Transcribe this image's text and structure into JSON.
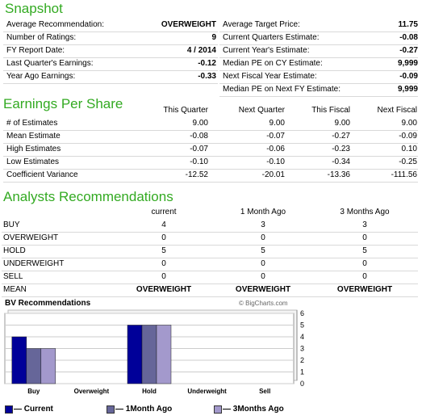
{
  "snapshot": {
    "title": "Snapshot",
    "left": [
      {
        "label": "Average Recommendation:",
        "value": "OVERWEIGHT"
      },
      {
        "label": "Number of Ratings:",
        "value": "9"
      },
      {
        "label": "FY Report Date:",
        "value": "4 / 2014"
      },
      {
        "label": "Last Quarter's Earnings:",
        "value": "-0.12"
      },
      {
        "label": "Year Ago Earnings:",
        "value": "-0.33"
      }
    ],
    "right": [
      {
        "label": "Average Target Price:",
        "value": "11.75"
      },
      {
        "label": "Current Quarters Estimate:",
        "value": "-0.08"
      },
      {
        "label": "Current Year's Estimate:",
        "value": "-0.27"
      },
      {
        "label": "Median PE on CY Estimate:",
        "value": "9,999"
      },
      {
        "label": "Next Fiscal Year Estimate:",
        "value": "-0.09"
      },
      {
        "label": "Median PE on Next FY Estimate:",
        "value": "9,999"
      }
    ]
  },
  "eps": {
    "title": "Earnings Per Share",
    "headers": [
      "This Quarter",
      "Next Quarter",
      "This Fiscal",
      "Next Fiscal"
    ],
    "rows": [
      {
        "label": "# of Estimates",
        "values": [
          "9.00",
          "9.00",
          "9.00",
          "9.00"
        ]
      },
      {
        "label": "Mean Estimate",
        "values": [
          "-0.08",
          "-0.07",
          "-0.27",
          "-0.09"
        ]
      },
      {
        "label": "High Estimates",
        "values": [
          "-0.07",
          "-0.06",
          "-0.23",
          "0.10"
        ]
      },
      {
        "label": "Low Estimates",
        "values": [
          "-0.10",
          "-0.10",
          "-0.34",
          "-0.25"
        ]
      },
      {
        "label": "Coefficient Variance",
        "values": [
          "-12.52",
          "-20.01",
          "-13.36",
          "-111.56"
        ]
      }
    ]
  },
  "analysts": {
    "title": "Analysts Recommendations",
    "headers": [
      "current",
      "1 Month Ago",
      "3 Months Ago"
    ],
    "rows": [
      {
        "label": "BUY",
        "values": [
          "4",
          "3",
          "3"
        ]
      },
      {
        "label": "OVERWEIGHT",
        "values": [
          "0",
          "0",
          "0"
        ]
      },
      {
        "label": "HOLD",
        "values": [
          "5",
          "5",
          "5"
        ]
      },
      {
        "label": "UNDERWEIGHT",
        "values": [
          "0",
          "0",
          "0"
        ]
      },
      {
        "label": "SELL",
        "values": [
          "0",
          "0",
          "0"
        ]
      }
    ],
    "mean": {
      "label": "MEAN",
      "values": [
        "OVERWEIGHT",
        "OVERWEIGHT",
        "OVERWEIGHT"
      ]
    }
  },
  "chart_data": {
    "type": "bar",
    "title": "BV Recommendations",
    "watermark": "© BigCharts.com",
    "categories": [
      "Buy",
      "Overweight",
      "Hold",
      "Underweight",
      "Sell"
    ],
    "series": [
      {
        "name": "Current",
        "values": [
          4,
          0,
          5,
          0,
          0
        ],
        "color": "#000099"
      },
      {
        "name": "1Month Ago",
        "values": [
          3,
          0,
          5,
          0,
          0
        ],
        "color": "#666699"
      },
      {
        "name": "3Months Ago",
        "values": [
          3,
          0,
          5,
          0,
          0
        ],
        "color": "#a399cc"
      }
    ],
    "ylim": [
      0,
      6
    ],
    "yticks": [
      "0",
      "1",
      "2",
      "3",
      "4",
      "5",
      "6"
    ],
    "grid": true,
    "legend": "bottom"
  }
}
